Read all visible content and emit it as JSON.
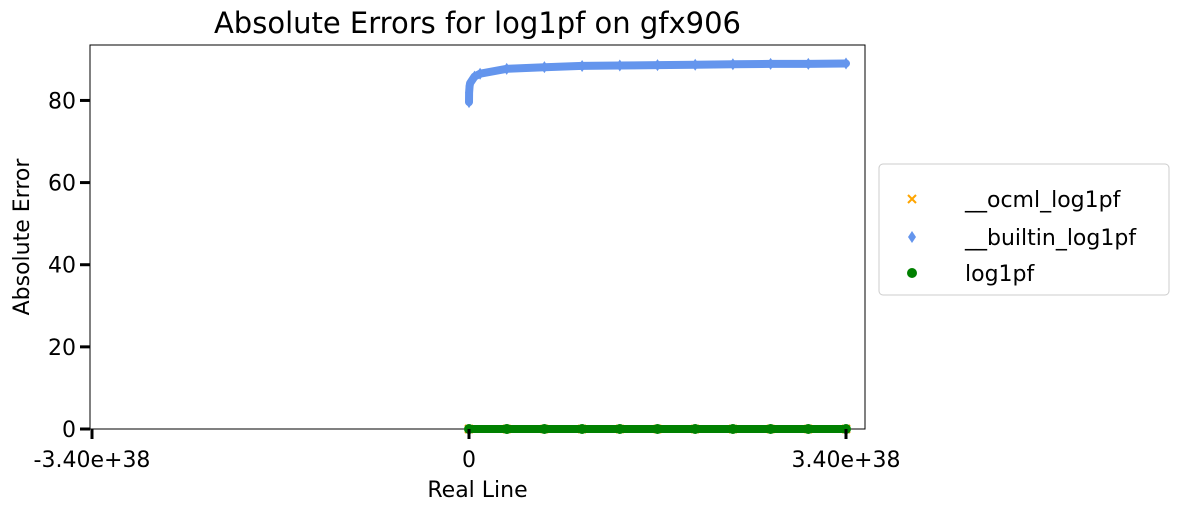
{
  "chart_data": {
    "type": "scatter",
    "title": "Absolute Errors for log1pf on gfx906",
    "xlabel": "Real Line",
    "ylabel": "Absolute Error",
    "xlim": [
      -3.4e+38,
      3.4e+38
    ],
    "ylim": [
      0,
      93.5
    ],
    "x_ticks": [
      -3.4e+38,
      0,
      3.4e+38
    ],
    "x_tick_labels": [
      "-3.40e+38",
      "0",
      "3.40e+38"
    ],
    "y_ticks": [
      0,
      20,
      40,
      60,
      80
    ],
    "y_tick_labels": [
      "0",
      "20",
      "40",
      "60",
      "80"
    ],
    "grid": false,
    "legend_position": "right-outside",
    "series": [
      {
        "name": "__ocml_log1pf",
        "marker": "x",
        "color": "#FFA500",
        "x": [
          0,
          3.4e+37,
          6.8e+37,
          1.02e+38,
          1.36e+38,
          1.7e+38,
          2.04e+38,
          2.38e+38,
          2.72e+38,
          3.06e+38,
          3.4e+38
        ],
        "y": [
          0,
          0,
          0,
          0,
          0,
          0,
          0,
          0,
          0,
          0,
          0
        ]
      },
      {
        "name": "__builtin_log1pf",
        "marker": "diamond",
        "color": "#6495ED",
        "x": [
          1e+34,
          1e+35,
          5e+35,
          1e+36,
          5e+36,
          1e+37,
          3.4e+37,
          6.8e+37,
          1.02e+38,
          1.36e+38,
          1.7e+38,
          2.04e+38,
          2.38e+38,
          2.72e+38,
          3.06e+38,
          3.4e+38
        ],
        "y": [
          79.6,
          81.9,
          83.5,
          84.2,
          85.8,
          86.5,
          87.7,
          88.1,
          88.4,
          88.5,
          88.6,
          88.7,
          88.8,
          88.9,
          88.9,
          89.0
        ]
      },
      {
        "name": "log1pf",
        "marker": "circle",
        "color": "#008000",
        "x": [
          0,
          3.4e+37,
          6.8e+37,
          1.02e+38,
          1.36e+38,
          1.7e+38,
          2.04e+38,
          2.38e+38,
          2.72e+38,
          3.06e+38,
          3.4e+38
        ],
        "y": [
          0,
          0,
          0,
          0,
          0,
          0,
          0,
          0,
          0,
          0,
          0
        ]
      }
    ]
  }
}
